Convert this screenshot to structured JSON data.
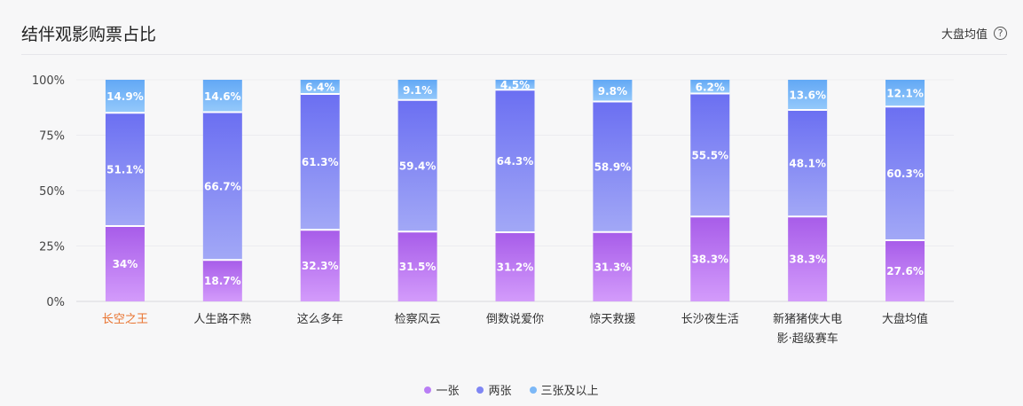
{
  "header": {
    "title": "结伴观影购票占比",
    "avg_link": "大盘均值",
    "help_glyph": "?"
  },
  "colors": {
    "one": "#b97ef5",
    "two": "#7f86f4",
    "three": "#7cb8f7",
    "highlight_label": "#e8722e"
  },
  "chart_data": {
    "type": "bar",
    "stacked": true,
    "ylim": [
      0,
      100
    ],
    "yticks": [
      "0%",
      "25%",
      "50%",
      "75%",
      "100%"
    ],
    "categories": [
      "长空之王",
      "人生路不熟",
      "这么多年",
      "检察风云",
      "倒数说爱你",
      "惊天救援",
      "长沙夜生活",
      "新猪猪侠大电影·超级赛车",
      "大盘均值"
    ],
    "category_lines": [
      [
        "长空之王"
      ],
      [
        "人生路不熟"
      ],
      [
        "这么多年"
      ],
      [
        "检察风云"
      ],
      [
        "倒数说爱你"
      ],
      [
        "惊天救援"
      ],
      [
        "长沙夜生活"
      ],
      [
        "新猪猪侠大电",
        "影·超级赛车"
      ],
      [
        "大盘均值"
      ]
    ],
    "highlight_category": "长空之王",
    "series": [
      {
        "name": "一张",
        "values": [
          34,
          18.7,
          32.3,
          31.5,
          31.2,
          31.3,
          38.3,
          38.3,
          27.6
        ],
        "labels": [
          "34%",
          "18.7%",
          "32.3%",
          "31.5%",
          "31.2%",
          "31.3%",
          "38.3%",
          "38.3%",
          "27.6%"
        ]
      },
      {
        "name": "两张",
        "values": [
          51.1,
          66.7,
          61.3,
          59.4,
          64.3,
          58.9,
          55.5,
          48.1,
          60.3
        ],
        "labels": [
          "51.1%",
          "66.7%",
          "61.3%",
          "59.4%",
          "64.3%",
          "58.9%",
          "55.5%",
          "48.1%",
          "60.3%"
        ]
      },
      {
        "name": "三张及以上",
        "values": [
          14.9,
          14.6,
          6.4,
          9.1,
          4.5,
          9.8,
          6.2,
          13.6,
          12.1
        ],
        "labels": [
          "14.9%",
          "14.6%",
          "6.4%",
          "9.1%",
          "4.5%",
          "9.8%",
          "6.2%",
          "13.6%",
          "12.1%"
        ]
      }
    ],
    "legend": [
      "一张",
      "两张",
      "三张及以上"
    ],
    "legend_position": "bottom-center",
    "grid": true
  }
}
